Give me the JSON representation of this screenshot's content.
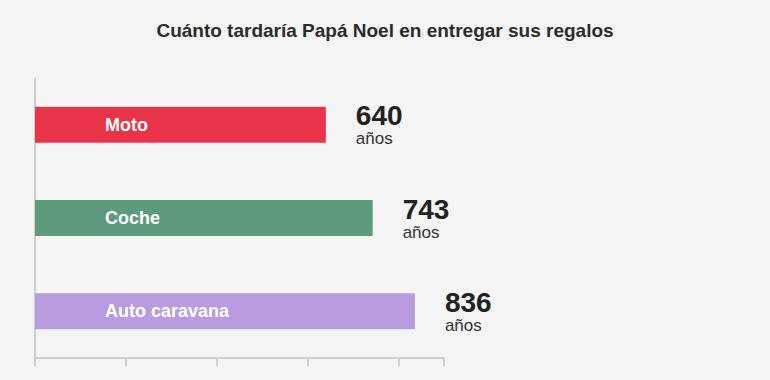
{
  "chart_data": {
    "type": "bar",
    "orientation": "horizontal",
    "title": "Cuánto tardaría Papá Noel en entregar sus regalos",
    "categories": [
      "Moto",
      "Coche",
      "Auto caravana"
    ],
    "values": [
      640,
      743,
      836
    ],
    "value_labels": [
      "640\naños",
      "743\naños",
      "836\naños"
    ],
    "colors": [
      "#e8334a",
      "#5e9b7c",
      "#b99be0"
    ],
    "xlim": [
      0,
      900
    ],
    "xticks": [
      0,
      200,
      400,
      600,
      800
    ],
    "grid": false,
    "data_labels": true,
    "tick_labels": false
  }
}
